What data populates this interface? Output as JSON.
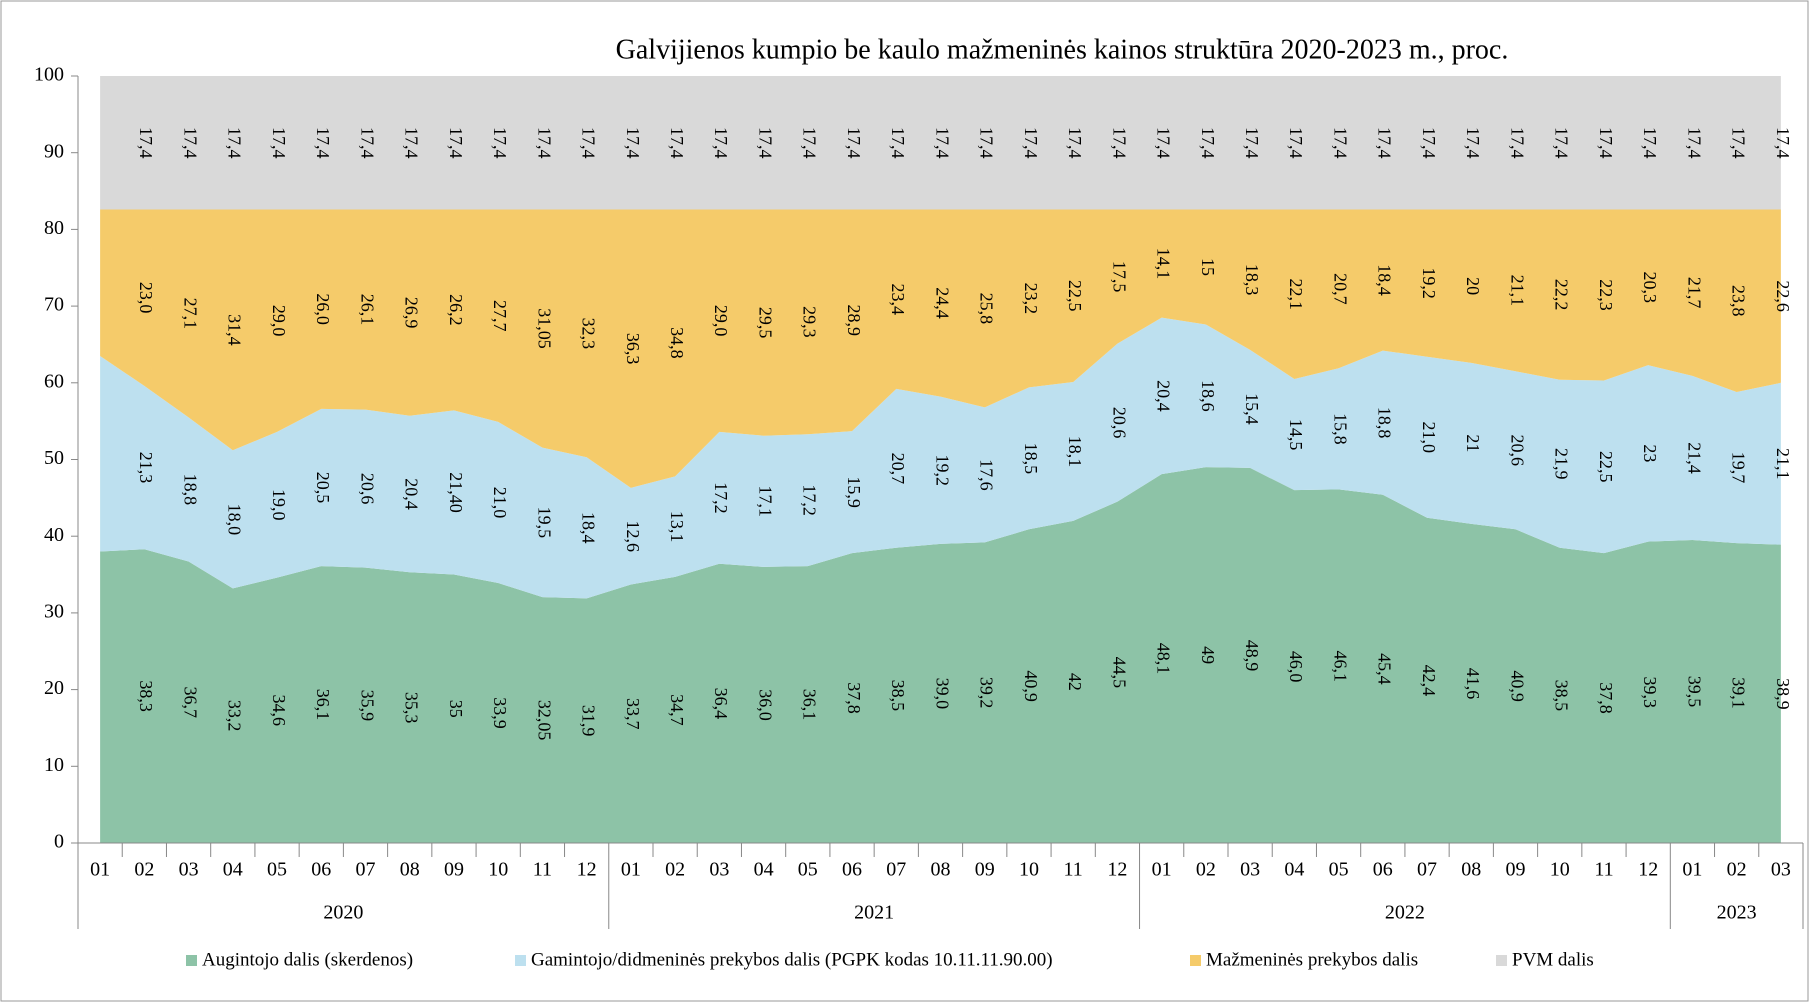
{
  "chart_data": {
    "type": "stacked_area",
    "title": "Galvijienos kumpio be kaulo mažmeninės kainos struktūra 2020-2023 m., proc.",
    "categories": [
      "01",
      "02",
      "03",
      "04",
      "05",
      "06",
      "07",
      "08",
      "09",
      "10",
      "11",
      "12",
      "01",
      "02",
      "03",
      "04",
      "05",
      "06",
      "07",
      "08",
      "09",
      "10",
      "11",
      "12",
      "01",
      "02",
      "03",
      "04",
      "05",
      "06",
      "07",
      "08",
      "09",
      "10",
      "11",
      "12",
      "01",
      "02",
      "03"
    ],
    "year_groups": [
      "2020",
      "2021",
      "2022",
      "2023"
    ],
    "ylim": [
      0,
      100
    ],
    "yticks": [
      0,
      10,
      20,
      30,
      40,
      50,
      60,
      70,
      80,
      90,
      100
    ],
    "series": [
      {
        "name": "Augintojo dalis (skerdenos)",
        "color": "#8dc3a7",
        "values": [
          38.0,
          38.3,
          36.7,
          33.2,
          34.6,
          36.1,
          35.9,
          35.3,
          35,
          33.9,
          32.05,
          31.9,
          33.7,
          34.7,
          36.4,
          36.0,
          36.1,
          37.8,
          38.5,
          39.0,
          39.2,
          40.9,
          42,
          44.5,
          48.1,
          49,
          48.9,
          46.0,
          46.1,
          45.4,
          42.4,
          41.6,
          40.9,
          38.5,
          37.8,
          39.3,
          39.5,
          39.1,
          38.9
        ],
        "value_labels": [
          null,
          "38,3",
          "36,7",
          "33,2",
          "34,6",
          "36,1",
          "35,9",
          "35,3",
          "35",
          "33,9",
          "32,05",
          "31,9",
          "33,7",
          "34,7",
          "36,4",
          "36,0",
          "36,1",
          "37,8",
          "38,5",
          "39,0",
          "39,2",
          "40,9",
          "42",
          "44,5",
          "48,1",
          "49",
          "48,9",
          "46,0",
          "46,1",
          "45,4",
          "42,4",
          "41,6",
          "40,9",
          "38,5",
          "37,8",
          "39,3",
          "39,5",
          "39,1",
          "38,9"
        ]
      },
      {
        "name": "Gamintojo/didmeninės prekybos dalis (PGPK kodas 10.11.11.90.00)",
        "color": "#bde0ef",
        "values": [
          25.5,
          21.3,
          18.8,
          18.0,
          19.0,
          20.5,
          20.6,
          20.4,
          21.4,
          21.0,
          19.5,
          18.4,
          12.6,
          13.1,
          17.2,
          17.1,
          17.2,
          15.9,
          20.7,
          19.2,
          17.6,
          18.5,
          18.1,
          20.6,
          20.4,
          18.6,
          15.4,
          14.5,
          15.8,
          18.8,
          21.0,
          21,
          20.6,
          21.9,
          22.5,
          23,
          21.4,
          19.7,
          21.1
        ],
        "value_labels": [
          null,
          "21,3",
          "18,8",
          "18,0",
          "19,0",
          "20,5",
          "20,6",
          "20,4",
          "21,40",
          "21,0",
          "19,5",
          "18,4",
          "12,6",
          "13,1",
          "17,2",
          "17,1",
          "17,2",
          "15,9",
          "20,7",
          "19,2",
          "17,6",
          "18,5",
          "18,1",
          "20,6",
          "20,4",
          "18,6",
          "15,4",
          "14,5",
          "15,8",
          "18,8",
          "21,0",
          "21",
          "20,6",
          "21,9",
          "22,5",
          "23",
          "21,4",
          "19,7",
          "21,1"
        ]
      },
      {
        "name": "Mažmeninės prekybos dalis",
        "color": "#f5cb6a",
        "values": [
          19.1,
          23.0,
          27.1,
          31.4,
          29.0,
          26.0,
          26.1,
          26.9,
          26.2,
          27.7,
          31.05,
          32.3,
          36.3,
          34.8,
          29.0,
          29.5,
          29.3,
          28.9,
          23.4,
          24.4,
          25.8,
          23.2,
          22.5,
          17.5,
          14.1,
          15,
          18.3,
          22.1,
          20.7,
          18.4,
          19.2,
          20,
          21.1,
          22.2,
          22.3,
          20.3,
          21.7,
          23.8,
          22.6
        ],
        "value_labels": [
          null,
          "23,0",
          "27,1",
          "31,4",
          "29,0",
          "26,0",
          "26,1",
          "26,9",
          "26,2",
          "27,7",
          "31,05",
          "32,3",
          "36,3",
          "34,8",
          "29,0",
          "29,5",
          "29,3",
          "28,9",
          "23,4",
          "24,4",
          "25,8",
          "23,2",
          "22,5",
          "17,5",
          "14,1",
          "15",
          "18,3",
          "22,1",
          "20,7",
          "18,4",
          "19,2",
          "20",
          "21,1",
          "22,2",
          "22,3",
          "20,3",
          "21,7",
          "23,8",
          "22,6"
        ]
      },
      {
        "name": "PVM dalis",
        "color": "#d9d9d9",
        "values": [
          17.4,
          17.4,
          17.4,
          17.4,
          17.4,
          17.4,
          17.4,
          17.4,
          17.4,
          17.4,
          17.4,
          17.4,
          17.4,
          17.4,
          17.4,
          17.4,
          17.4,
          17.4,
          17.4,
          17.4,
          17.4,
          17.4,
          17.4,
          17.4,
          17.4,
          17.4,
          17.4,
          17.4,
          17.4,
          17.4,
          17.4,
          17.4,
          17.4,
          17.4,
          17.4,
          17.4,
          17.4,
          17.4,
          17.4
        ],
        "value_labels": [
          null,
          "17,4",
          "17,4",
          "17,4",
          "17,4",
          "17,4",
          "17,4",
          "17,4",
          "17,4",
          "17,4",
          "17,4",
          "17,4",
          "17,4",
          "17,4",
          "17,4",
          "17,4",
          "17,4",
          "17,4",
          "17,4",
          "17,4",
          "17,4",
          "17,4",
          "17,4",
          "17,4",
          "17,4",
          "17,4",
          "17,4",
          "17,4",
          "17,4",
          "17,4",
          "17,4",
          "17,4",
          "17,4",
          "17,4",
          "17,4",
          "17,4",
          "17,4",
          "17,4",
          "17,4"
        ]
      }
    ]
  }
}
